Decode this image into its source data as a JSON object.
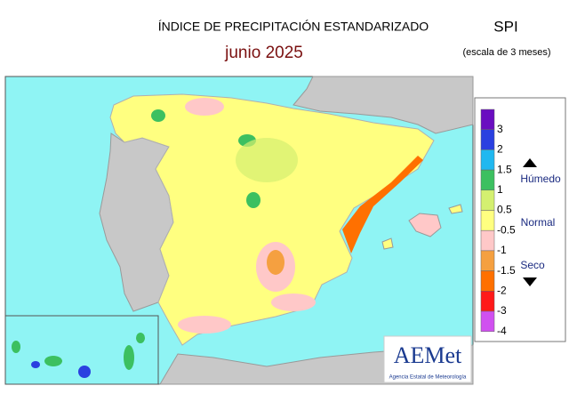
{
  "header": {
    "title": "ÍNDICE DE PRECIPITACIÓN ESTANDARIZADO",
    "subtitle": "junio  2025",
    "index": "SPI",
    "scale": "(escala de 3 meses)"
  },
  "legend": {
    "colors": [
      "#6a0dc0",
      "#2a40e0",
      "#20b8f0",
      "#3cc060",
      "#d4f070",
      "#ffff80",
      "#ffc8c8",
      "#f5a040",
      "#ff7000",
      "#ff1a1a",
      "#d050f0"
    ],
    "labels": [
      "3",
      "2",
      "1.5",
      "1",
      "0.5",
      "-0.5",
      "-1",
      "-1.5",
      "-2",
      "-3",
      "-4"
    ],
    "wet": "Húmedo",
    "normal": "Normal",
    "dry": "Seco"
  },
  "logo": {
    "name": "AEMet",
    "caption": "Agencia Estatal de Meteorología"
  }
}
